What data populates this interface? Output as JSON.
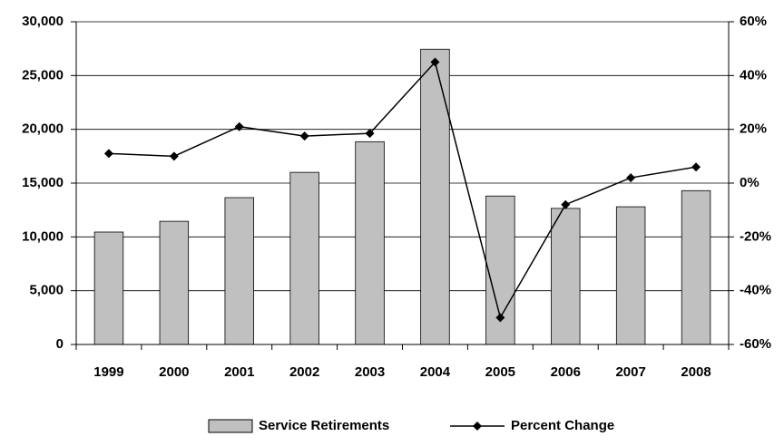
{
  "chart_data": {
    "type": "bar-line",
    "categories": [
      "1999",
      "2000",
      "2001",
      "2002",
      "2003",
      "2004",
      "2005",
      "2006",
      "2007",
      "2008"
    ],
    "series": [
      {
        "name": "Service Retirements",
        "type": "bar",
        "color": "#c0c0c0",
        "values": [
          10450,
          11450,
          13650,
          16000,
          18850,
          27450,
          13800,
          12650,
          12800,
          14300
        ]
      },
      {
        "name": "Percent Change",
        "type": "line",
        "axis": "y2",
        "color": "#000000",
        "values": [
          11,
          10,
          21,
          17.5,
          18.5,
          45,
          -50,
          -8,
          2,
          6
        ]
      }
    ],
    "ylim": [
      0,
      30000
    ],
    "yticks": [
      0,
      {
        "value": 5000,
        "label": "5,000"
      },
      {
        "value": 10000,
        "label": "10,000"
      },
      {
        "value": 15000,
        "label": "15,000"
      },
      {
        "value": 20000,
        "label": "20,000"
      },
      {
        "value": 25000,
        "label": "25,000"
      },
      {
        "value": 30000,
        "label": "30,000"
      }
    ],
    "y2lim": [
      -60,
      60
    ],
    "y2ticks": [
      {
        "value": -60,
        "label": "-60%"
      },
      {
        "value": -40,
        "label": "-40%"
      },
      {
        "value": -20,
        "label": "-20%"
      },
      {
        "value": 0,
        "label": "0%"
      },
      {
        "value": 20,
        "label": "20%"
      },
      {
        "value": 40,
        "label": "40%"
      },
      {
        "value": 60,
        "label": "60%"
      }
    ],
    "grid": true,
    "legend": "bottom"
  }
}
